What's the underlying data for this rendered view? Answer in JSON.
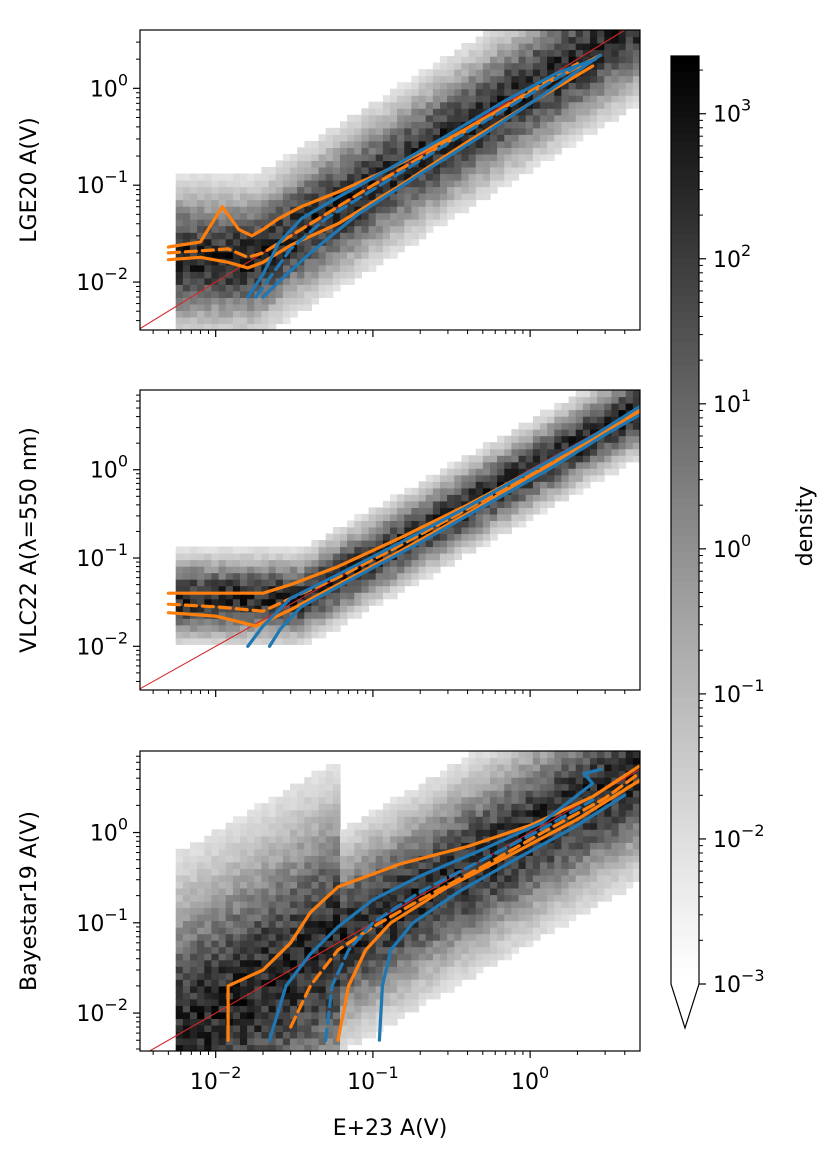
{
  "chart_data": [
    {
      "type": "scatter",
      "ylabel": "LGE20 A(V)",
      "xlabel": "",
      "xscale": "log",
      "yscale": "log",
      "xlim": [
        0.0033,
        5.0
      ],
      "ylim": [
        0.0032,
        4.0
      ],
      "x_ticks": [
        "",
        "",
        ""
      ],
      "y_ticks": [
        "10^-2",
        "10^-1",
        "10^0"
      ],
      "one_to_one_line": true,
      "contours": [
        {
          "color": "#ff7f0e",
          "style": "solid",
          "x": [
            0.005,
            0.008,
            0.011,
            0.014,
            0.017,
            0.02,
            0.025,
            0.035,
            0.06,
            0.12,
            0.3,
            0.7,
            1.5,
            2.8
          ],
          "y": [
            0.023,
            0.026,
            0.06,
            0.035,
            0.03,
            0.035,
            0.045,
            0.06,
            0.085,
            0.14,
            0.3,
            0.65,
            1.3,
            2.2
          ]
        },
        {
          "color": "#ff7f0e",
          "style": "dashed",
          "x": [
            0.005,
            0.008,
            0.012,
            0.016,
            0.02,
            0.03,
            0.05,
            0.1,
            0.3,
            0.8,
            2.0
          ],
          "y": [
            0.02,
            0.021,
            0.022,
            0.018,
            0.02,
            0.03,
            0.05,
            0.1,
            0.28,
            0.75,
            1.8
          ]
        },
        {
          "color": "#ff7f0e",
          "style": "solid",
          "x": [
            0.005,
            0.008,
            0.012,
            0.016,
            0.02,
            0.03,
            0.06,
            0.15,
            0.4,
            1.0,
            2.5
          ],
          "y": [
            0.017,
            0.018,
            0.016,
            0.014,
            0.016,
            0.024,
            0.04,
            0.1,
            0.28,
            0.7,
            1.7
          ]
        },
        {
          "color": "#1f77b4",
          "style": "solid",
          "x": [
            0.016,
            0.02,
            0.025,
            0.035,
            0.06,
            0.12,
            0.3,
            0.7,
            1.5,
            2.6
          ],
          "y": [
            0.007,
            0.012,
            0.025,
            0.045,
            0.075,
            0.14,
            0.33,
            0.75,
            1.45,
            2.0
          ]
        },
        {
          "color": "#1f77b4",
          "style": "dashed",
          "x": [
            0.018,
            0.022,
            0.03,
            0.05,
            0.1,
            0.3,
            0.8,
            2.0
          ],
          "y": [
            0.007,
            0.011,
            0.022,
            0.045,
            0.09,
            0.27,
            0.7,
            1.7
          ]
        },
        {
          "color": "#1f77b4",
          "style": "solid",
          "x": [
            0.02,
            0.025,
            0.04,
            0.08,
            0.2,
            0.5,
            1.2,
            2.8
          ],
          "y": [
            0.007,
            0.01,
            0.02,
            0.05,
            0.13,
            0.33,
            0.85,
            2.2
          ]
        }
      ]
    },
    {
      "type": "scatter",
      "ylabel": "VLC22 A(λ=550 nm)",
      "xlabel": "",
      "xscale": "log",
      "yscale": "log",
      "xlim": [
        0.0033,
        5.0
      ],
      "ylim": [
        0.0032,
        8.0
      ],
      "x_ticks": [
        "",
        "",
        ""
      ],
      "y_ticks": [
        "10^-2",
        "10^-1",
        "10^0"
      ],
      "one_to_one_line": true,
      "contours": [
        {
          "color": "#ff7f0e",
          "style": "solid",
          "x": [
            0.005,
            0.01,
            0.02,
            0.03,
            0.06,
            0.15,
            0.4,
            1.0,
            2.5,
            5.0
          ],
          "y": [
            0.04,
            0.04,
            0.04,
            0.05,
            0.08,
            0.17,
            0.4,
            0.95,
            2.3,
            4.5
          ]
        },
        {
          "color": "#ff7f0e",
          "style": "dashed",
          "x": [
            0.005,
            0.01,
            0.02,
            0.03,
            0.06,
            0.15,
            0.4,
            1.0,
            2.5,
            5.0
          ],
          "y": [
            0.03,
            0.028,
            0.025,
            0.035,
            0.06,
            0.14,
            0.36,
            0.9,
            2.2,
            4.6
          ]
        },
        {
          "color": "#ff7f0e",
          "style": "solid",
          "x": [
            0.005,
            0.01,
            0.018,
            0.03,
            0.06,
            0.15,
            0.4,
            1.0,
            2.5,
            5.0
          ],
          "y": [
            0.024,
            0.022,
            0.017,
            0.026,
            0.05,
            0.12,
            0.32,
            0.85,
            2.1,
            4.8
          ]
        },
        {
          "color": "#1f77b4",
          "style": "solid",
          "x": [
            0.016,
            0.02,
            0.03,
            0.06,
            0.15,
            0.4,
            1.0,
            2.5,
            5.0
          ],
          "y": [
            0.01,
            0.017,
            0.035,
            0.065,
            0.15,
            0.38,
            0.95,
            2.4,
            5.2
          ]
        },
        {
          "color": "#1f77b4",
          "style": "solid",
          "x": [
            0.022,
            0.026,
            0.035,
            0.07,
            0.2,
            0.5,
            1.3,
            3.0,
            5.0
          ],
          "y": [
            0.01,
            0.016,
            0.028,
            0.055,
            0.15,
            0.38,
            1.0,
            2.5,
            4.2
          ]
        }
      ]
    },
    {
      "type": "scatter",
      "ylabel": "Bayestar19 A(V)",
      "xlabel": "E+23 A(V)",
      "xscale": "log",
      "yscale": "log",
      "xlim": [
        0.0033,
        5.0
      ],
      "ylim": [
        0.0038,
        8.0
      ],
      "x_ticks": [
        "10^-2",
        "10^-1",
        "10^0"
      ],
      "y_ticks": [
        "10^-2",
        "10^-1",
        "10^0"
      ],
      "one_to_one_line": true,
      "contours": [
        {
          "color": "#ff7f0e",
          "style": "solid",
          "x": [
            0.012,
            0.012,
            0.02,
            0.03,
            0.04,
            0.06,
            0.15,
            0.4,
            1.0,
            2.5,
            5.0
          ],
          "y": [
            0.005,
            0.02,
            0.03,
            0.06,
            0.13,
            0.25,
            0.45,
            0.7,
            1.2,
            2.5,
            5.5
          ]
        },
        {
          "color": "#ff7f0e",
          "style": "dashed",
          "x": [
            0.03,
            0.04,
            0.06,
            0.1,
            0.2,
            0.5,
            1.2,
            3.0,
            5.0
          ],
          "y": [
            0.007,
            0.02,
            0.05,
            0.09,
            0.18,
            0.42,
            1.0,
            2.4,
            4.6
          ]
        },
        {
          "color": "#ff7f0e",
          "style": "solid",
          "x": [
            0.06,
            0.07,
            0.09,
            0.13,
            0.3,
            0.8,
            2.0,
            5.0
          ],
          "y": [
            0.005,
            0.02,
            0.05,
            0.1,
            0.25,
            0.6,
            1.4,
            3.8
          ]
        },
        {
          "color": "#1f77b4",
          "style": "solid",
          "x": [
            0.022,
            0.028,
            0.04,
            0.06,
            0.1,
            0.2,
            0.5,
            1.2,
            2.0,
            2.5,
            2.2,
            2.8
          ],
          "y": [
            0.005,
            0.02,
            0.045,
            0.09,
            0.18,
            0.33,
            0.65,
            1.3,
            2.6,
            3.5,
            4.5,
            5.0
          ]
        },
        {
          "color": "#1f77b4",
          "style": "dashed",
          "x": [
            0.05,
            0.055,
            0.07,
            0.1,
            0.2,
            0.5,
            1.2,
            2.5
          ],
          "y": [
            0.005,
            0.02,
            0.05,
            0.1,
            0.22,
            0.5,
            1.1,
            2.3
          ]
        },
        {
          "color": "#1f77b4",
          "style": "solid",
          "x": [
            0.11,
            0.115,
            0.13,
            0.18,
            0.35,
            0.8,
            2.0,
            4.0
          ],
          "y": [
            0.005,
            0.02,
            0.05,
            0.1,
            0.22,
            0.5,
            1.2,
            2.6
          ]
        }
      ]
    },
    {
      "type": "heatmap",
      "ylabel": "density",
      "scale": "log",
      "range": [
        0.001,
        2500
      ],
      "ticks": [
        "10^-3",
        "10^-2",
        "10^-1",
        "10^0",
        "10^1",
        "10^2",
        "10^3"
      ],
      "colormap": "Greys",
      "extend": "min"
    }
  ]
}
